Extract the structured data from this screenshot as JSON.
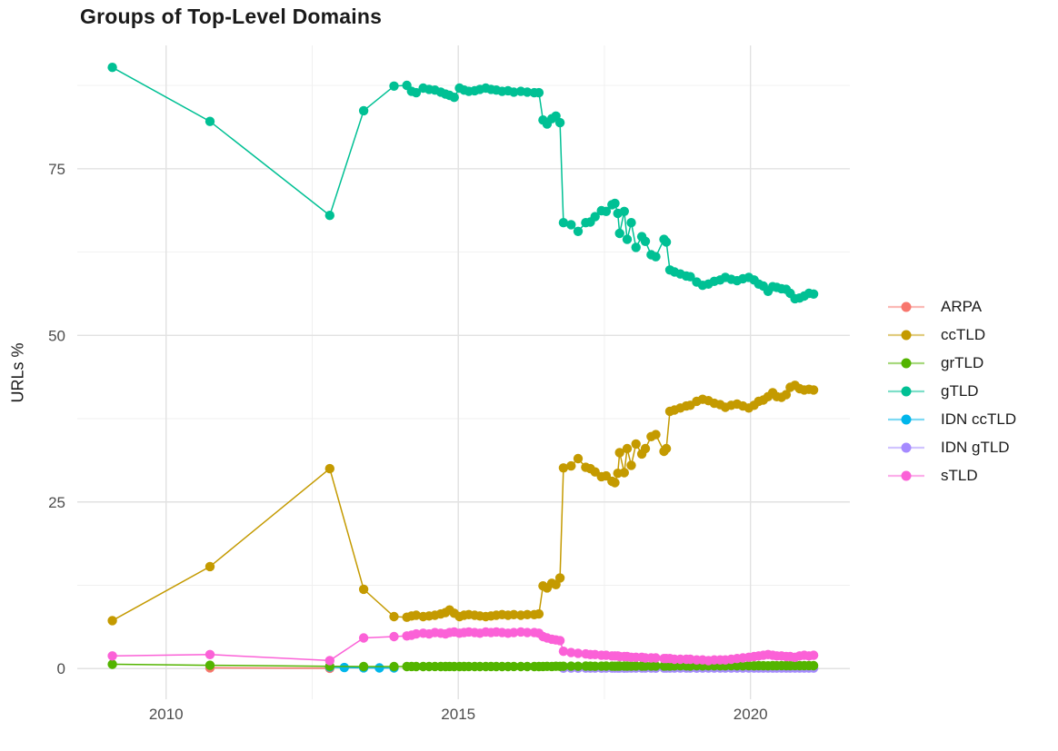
{
  "chart_data": {
    "type": "scatter",
    "title": "Groups of Top-Level Domains",
    "xlabel": "",
    "ylabel": "URLs %",
    "grid": true,
    "legend_position": "right",
    "xlim": [
      2008.48,
      2021.7
    ],
    "ylim": [
      -4.6,
      93.5
    ],
    "x_ticks": {
      "major": [
        2010,
        2015,
        2020
      ],
      "minor": [
        2012.5,
        2017.5
      ],
      "labels": [
        "2010",
        "2015",
        "2020"
      ]
    },
    "y_ticks": {
      "major": [
        0,
        25,
        50,
        75
      ],
      "minor": [
        12.5,
        37.5,
        62.5,
        87.5
      ],
      "labels": [
        "0",
        "25",
        "50",
        "75"
      ]
    },
    "grid_major_color": "#e2e2e2",
    "grid_minor_color": "#efefef",
    "tick_label_color": "#4d4d4d",
    "draw_order": [
      "ARPA",
      "IDN ccTLD",
      "IDN gTLD",
      "grTLD",
      "sTLD",
      "ccTLD",
      "gTLD"
    ],
    "series": [
      {
        "name": "ARPA",
        "color": "#F8766D",
        "x": [
          2010.75,
          2012.8
        ],
        "y": [
          0.12,
          0.05
        ]
      },
      {
        "name": "ccTLD",
        "color": "#C49A00",
        "x": [
          2009.08,
          2010.75,
          2012.8,
          2013.38,
          2013.9,
          2014.12,
          2014.2,
          2014.28,
          2014.4,
          2014.5,
          2014.6,
          2014.7,
          2014.78,
          2014.85,
          2014.93,
          2015.02,
          2015.1,
          2015.18,
          2015.28,
          2015.37,
          2015.47,
          2015.56,
          2015.65,
          2015.75,
          2015.85,
          2015.95,
          2016.07,
          2016.18,
          2016.3,
          2016.38,
          2016.45,
          2016.52,
          2016.6,
          2016.67,
          2016.74,
          2016.8,
          2016.93,
          2017.05,
          2017.18,
          2017.26,
          2017.34,
          2017.45,
          2017.53,
          2017.63,
          2017.68,
          2017.73,
          2017.76,
          2017.84,
          2017.89,
          2017.96,
          2018.04,
          2018.14,
          2018.2,
          2018.3,
          2018.38,
          2018.52,
          2018.56,
          2018.62,
          2018.7,
          2018.8,
          2018.9,
          2018.97,
          2019.08,
          2019.18,
          2019.28,
          2019.38,
          2019.48,
          2019.57,
          2019.67,
          2019.77,
          2019.87,
          2019.97,
          2020.06,
          2020.14,
          2020.22,
          2020.3,
          2020.38,
          2020.45,
          2020.53,
          2020.61,
          2020.68,
          2020.76,
          2020.84,
          2020.92,
          2021.0,
          2021.08
        ],
        "y": [
          7.2,
          15.3,
          30.0,
          11.9,
          7.8,
          7.7,
          7.9,
          8.0,
          7.8,
          7.9,
          8.0,
          8.2,
          8.4,
          8.8,
          8.3,
          7.8,
          8.0,
          8.1,
          8.0,
          7.9,
          7.8,
          7.9,
          8.0,
          8.1,
          8.0,
          8.1,
          8.0,
          8.1,
          8.1,
          8.2,
          12.4,
          12.1,
          12.8,
          12.6,
          13.6,
          30.1,
          30.4,
          31.5,
          30.2,
          30.0,
          29.5,
          28.8,
          28.9,
          28.1,
          27.9,
          29.3,
          32.4,
          29.4,
          33.0,
          30.5,
          33.7,
          32.2,
          33.0,
          34.8,
          35.1,
          32.6,
          33.0,
          38.6,
          38.8,
          39.1,
          39.4,
          39.5,
          40.1,
          40.4,
          40.2,
          39.8,
          39.6,
          39.2,
          39.5,
          39.7,
          39.4,
          39.1,
          39.5,
          40.1,
          40.3,
          40.8,
          41.4,
          40.8,
          40.7,
          41.1,
          42.2,
          42.5,
          42.0,
          41.8,
          41.9,
          41.8
        ]
      },
      {
        "name": "grTLD",
        "color": "#53B400",
        "x": [
          2009.08,
          2010.75,
          2012.8,
          2013.38,
          2013.9,
          2014.12,
          2014.2,
          2014.28,
          2014.4,
          2014.5,
          2014.6,
          2014.7,
          2014.78,
          2014.85,
          2014.93,
          2015.02,
          2015.1,
          2015.18,
          2015.28,
          2015.37,
          2015.47,
          2015.56,
          2015.65,
          2015.75,
          2015.85,
          2015.95,
          2016.07,
          2016.18,
          2016.3,
          2016.38,
          2016.45,
          2016.52,
          2016.6,
          2016.67,
          2016.74,
          2016.8,
          2016.93,
          2017.05,
          2017.18,
          2017.26,
          2017.34,
          2017.45,
          2017.53,
          2017.63,
          2017.68,
          2017.73,
          2017.76,
          2017.84,
          2017.89,
          2017.96,
          2018.04,
          2018.14,
          2018.2,
          2018.3,
          2018.38,
          2018.52,
          2018.56,
          2018.62,
          2018.7,
          2018.8,
          2018.9,
          2018.97,
          2019.08,
          2019.18,
          2019.28,
          2019.38,
          2019.48,
          2019.57,
          2019.67,
          2019.77,
          2019.87,
          2019.97,
          2020.06,
          2020.14,
          2020.22,
          2020.3,
          2020.38,
          2020.45,
          2020.53,
          2020.61,
          2020.68,
          2020.76,
          2020.84,
          2020.92,
          2021.0,
          2021.08
        ],
        "y": [
          0.65,
          0.5,
          0.35,
          0.3,
          0.3,
          0.3,
          0.32,
          0.3,
          0.31,
          0.3,
          0.32,
          0.31,
          0.3,
          0.32,
          0.3,
          0.31,
          0.3,
          0.32,
          0.31,
          0.3,
          0.31,
          0.32,
          0.3,
          0.31,
          0.3,
          0.32,
          0.31,
          0.3,
          0.31,
          0.3,
          0.32,
          0.33,
          0.32,
          0.34,
          0.33,
          0.35,
          0.36,
          0.35,
          0.37,
          0.36,
          0.35,
          0.36,
          0.37,
          0.36,
          0.35,
          0.36,
          0.37,
          0.38,
          0.37,
          0.36,
          0.38,
          0.37,
          0.38,
          0.39,
          0.38,
          0.39,
          0.4,
          0.39,
          0.4,
          0.41,
          0.4,
          0.39,
          0.41,
          0.4,
          0.42,
          0.41,
          0.42,
          0.41,
          0.43,
          0.42,
          0.41,
          0.43,
          0.42,
          0.44,
          0.43,
          0.42,
          0.44,
          0.43,
          0.45,
          0.44,
          0.43,
          0.45,
          0.44,
          0.46,
          0.45,
          0.44
        ]
      },
      {
        "name": "gTLD",
        "color": "#00C094",
        "x": [
          2009.08,
          2010.75,
          2012.8,
          2013.38,
          2013.9,
          2014.12,
          2014.2,
          2014.28,
          2014.4,
          2014.5,
          2014.6,
          2014.7,
          2014.78,
          2014.85,
          2014.93,
          2015.02,
          2015.1,
          2015.18,
          2015.28,
          2015.37,
          2015.47,
          2015.56,
          2015.65,
          2015.75,
          2015.85,
          2015.95,
          2016.07,
          2016.18,
          2016.3,
          2016.38,
          2016.45,
          2016.52,
          2016.6,
          2016.67,
          2016.74,
          2016.8,
          2016.93,
          2017.05,
          2017.18,
          2017.26,
          2017.34,
          2017.45,
          2017.53,
          2017.63,
          2017.68,
          2017.73,
          2017.76,
          2017.84,
          2017.89,
          2017.96,
          2018.04,
          2018.14,
          2018.2,
          2018.3,
          2018.38,
          2018.52,
          2018.56,
          2018.62,
          2018.7,
          2018.8,
          2018.9,
          2018.97,
          2019.08,
          2019.18,
          2019.28,
          2019.38,
          2019.48,
          2019.57,
          2019.67,
          2019.77,
          2019.87,
          2019.97,
          2020.06,
          2020.14,
          2020.22,
          2020.3,
          2020.38,
          2020.45,
          2020.53,
          2020.61,
          2020.68,
          2020.76,
          2020.84,
          2020.92,
          2021.0,
          2021.08
        ],
        "y": [
          90.2,
          82.1,
          68.0,
          83.7,
          87.4,
          87.5,
          86.6,
          86.4,
          87.1,
          86.9,
          86.8,
          86.5,
          86.2,
          86.0,
          85.7,
          87.1,
          86.8,
          86.6,
          86.7,
          86.9,
          87.1,
          86.9,
          86.8,
          86.6,
          86.7,
          86.5,
          86.6,
          86.5,
          86.4,
          86.4,
          82.3,
          81.7,
          82.5,
          82.9,
          81.9,
          66.9,
          66.6,
          65.6,
          66.9,
          67.0,
          67.8,
          68.7,
          68.6,
          69.6,
          69.8,
          68.3,
          65.3,
          68.6,
          64.4,
          66.9,
          63.2,
          64.8,
          64.1,
          62.1,
          61.8,
          64.4,
          64.0,
          59.8,
          59.5,
          59.2,
          58.9,
          58.8,
          58.0,
          57.5,
          57.7,
          58.1,
          58.3,
          58.7,
          58.4,
          58.2,
          58.5,
          58.7,
          58.3,
          57.7,
          57.4,
          56.6,
          57.3,
          57.2,
          57.0,
          56.9,
          56.3,
          55.5,
          55.6,
          55.9,
          56.3,
          56.2
        ]
      },
      {
        "name": "IDN ccTLD",
        "color": "#00B6EB",
        "x": [
          2012.8,
          2013.05,
          2013.38,
          2013.65,
          2013.9
        ],
        "y": [
          0.22,
          0.15,
          0.12,
          0.1,
          0.1
        ]
      },
      {
        "name": "IDN gTLD",
        "color": "#A58AFF",
        "x": [
          2016.8,
          2016.93,
          2017.05,
          2017.18,
          2017.26,
          2017.34,
          2017.45,
          2017.53,
          2017.63,
          2017.68,
          2017.73,
          2017.76,
          2017.84,
          2017.89,
          2017.96,
          2018.04,
          2018.14,
          2018.2,
          2018.3,
          2018.38,
          2018.52,
          2018.56,
          2018.62,
          2018.7,
          2018.8,
          2018.9,
          2018.97,
          2019.08,
          2019.18,
          2019.28,
          2019.38,
          2019.48,
          2019.57,
          2019.67,
          2019.77,
          2019.87,
          2019.97,
          2020.06,
          2020.14,
          2020.22,
          2020.3,
          2020.38,
          2020.45,
          2020.53,
          2020.61,
          2020.68,
          2020.76,
          2020.84,
          2020.92,
          2021.0,
          2021.08
        ],
        "y": [
          0.06,
          0.07,
          0.06,
          0.07,
          0.08,
          0.07,
          0.06,
          0.07,
          0.08,
          0.07,
          0.08,
          0.07,
          0.06,
          0.08,
          0.07,
          0.08,
          0.07,
          0.08,
          0.07,
          0.06,
          0.08,
          0.07,
          0.08,
          0.07,
          0.08,
          0.07,
          0.08,
          0.06,
          0.07,
          0.08,
          0.07,
          0.08,
          0.07,
          0.08,
          0.07,
          0.08,
          0.07,
          0.08,
          0.07,
          0.08,
          0.07,
          0.08,
          0.07,
          0.08,
          0.07,
          0.08,
          0.07,
          0.08,
          0.07,
          0.08,
          0.07
        ]
      },
      {
        "name": "sTLD",
        "color": "#FB61D7",
        "x": [
          2009.08,
          2010.75,
          2012.8,
          2013.38,
          2013.9,
          2014.12,
          2014.2,
          2014.28,
          2014.4,
          2014.5,
          2014.6,
          2014.7,
          2014.78,
          2014.85,
          2014.93,
          2015.02,
          2015.1,
          2015.18,
          2015.28,
          2015.37,
          2015.47,
          2015.56,
          2015.65,
          2015.75,
          2015.85,
          2015.95,
          2016.07,
          2016.18,
          2016.3,
          2016.38,
          2016.45,
          2016.52,
          2016.6,
          2016.67,
          2016.74,
          2016.8,
          2016.93,
          2017.05,
          2017.18,
          2017.26,
          2017.34,
          2017.45,
          2017.53,
          2017.63,
          2017.68,
          2017.73,
          2017.76,
          2017.84,
          2017.89,
          2017.96,
          2018.04,
          2018.14,
          2018.2,
          2018.3,
          2018.38,
          2018.52,
          2018.56,
          2018.62,
          2018.7,
          2018.8,
          2018.9,
          2018.97,
          2019.08,
          2019.18,
          2019.28,
          2019.38,
          2019.48,
          2019.57,
          2019.67,
          2019.77,
          2019.87,
          2019.97,
          2020.06,
          2020.14,
          2020.22,
          2020.3,
          2020.38,
          2020.45,
          2020.53,
          2020.61,
          2020.68,
          2020.76,
          2020.84,
          2020.92,
          2021.0,
          2021.08
        ],
        "y": [
          1.9,
          2.1,
          1.2,
          4.6,
          4.8,
          4.9,
          5.0,
          5.2,
          5.3,
          5.2,
          5.4,
          5.3,
          5.2,
          5.4,
          5.5,
          5.3,
          5.4,
          5.5,
          5.4,
          5.3,
          5.5,
          5.4,
          5.5,
          5.4,
          5.3,
          5.4,
          5.5,
          5.4,
          5.4,
          5.3,
          4.8,
          4.6,
          4.4,
          4.3,
          4.2,
          2.6,
          2.4,
          2.3,
          2.2,
          2.1,
          2.1,
          2.0,
          2.0,
          1.9,
          1.9,
          1.9,
          1.8,
          1.8,
          1.8,
          1.7,
          1.7,
          1.7,
          1.6,
          1.6,
          1.6,
          1.5,
          1.5,
          1.5,
          1.4,
          1.4,
          1.4,
          1.4,
          1.3,
          1.3,
          1.2,
          1.3,
          1.3,
          1.3,
          1.4,
          1.5,
          1.6,
          1.7,
          1.8,
          1.9,
          2.0,
          2.1,
          2.0,
          1.9,
          1.9,
          1.8,
          1.8,
          1.7,
          1.9,
          2.0,
          1.9,
          2.0
        ]
      }
    ]
  }
}
